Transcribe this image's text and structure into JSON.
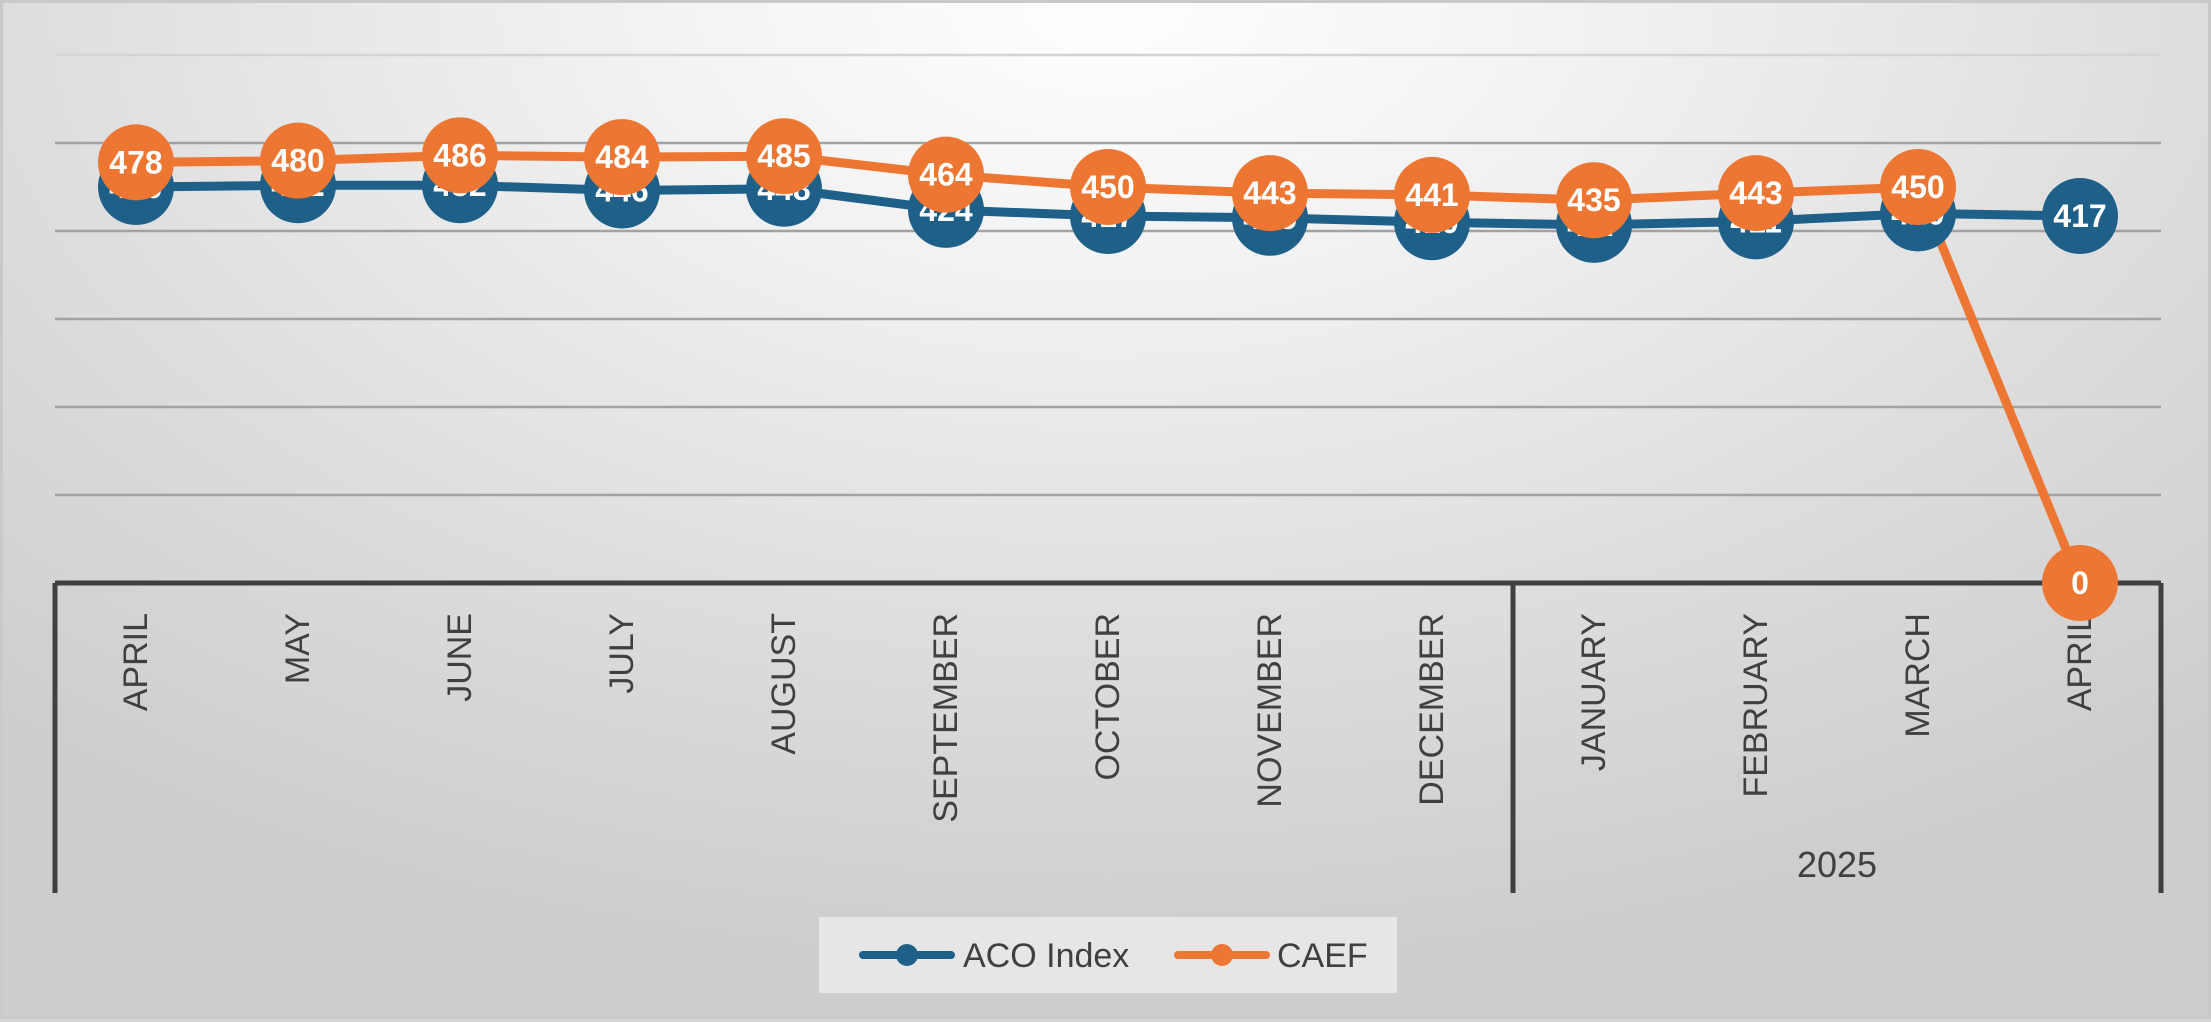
{
  "chart_data": {
    "type": "line",
    "title": "",
    "xlabel": "",
    "ylabel": "",
    "categories": [
      "APRIL",
      "MAY",
      "JUNE",
      "JULY",
      "AUGUST",
      "SEPTEMBER",
      "OCTOBER",
      "NOVEMBER",
      "DECEMBER",
      "JANUARY",
      "FEBRUARY",
      "MARCH",
      "APRIL"
    ],
    "category_groups": [
      {
        "label": "",
        "from": 0,
        "to": 8
      },
      {
        "label": "2025",
        "from": 9,
        "to": 12
      }
    ],
    "series": [
      {
        "name": "ACO Index",
        "color": "#1f6089",
        "values": [
          450,
          452,
          452,
          446,
          448,
          424,
          417,
          415,
          410,
          407,
          411,
          420,
          417
        ]
      },
      {
        "name": "CAEF",
        "color": "#ed7633",
        "values": [
          478,
          480,
          486,
          484,
          485,
          464,
          450,
          443,
          441,
          435,
          443,
          450,
          0
        ]
      }
    ],
    "ylim": [
      0,
      600
    ],
    "grid": true,
    "data_labels": true,
    "legend_position": "bottom"
  }
}
